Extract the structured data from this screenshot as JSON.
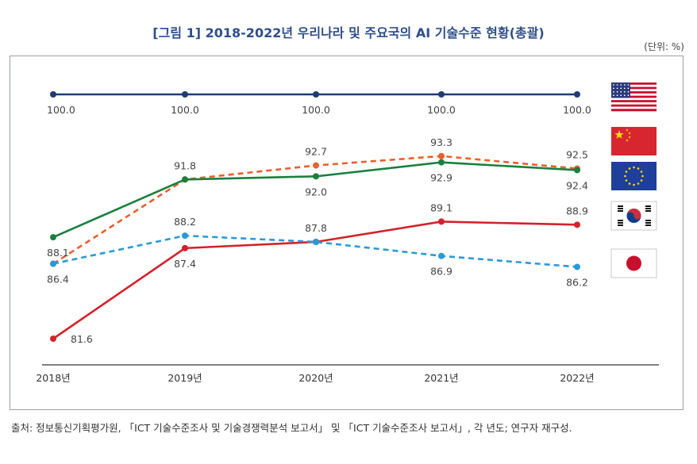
{
  "title": "[그림 1] 2018-2022년 우리나라 및 주요국의 AI 기술수준 현황(총괄)",
  "unit": "(단위: %)",
  "source": "출처: 정보통신기획평가원, 「ICT 기술수준조사 및 기술경쟁력분석 보고서」 및 「ICT 기술수준조사 보고서」, 각 년도; 연구자 재구성.",
  "chart_data": {
    "type": "line",
    "title": "[그림 1] 2018-2022년 우리나라 및 주요국의 AI 기술수준 현황(총괄)",
    "xlabel": "",
    "ylabel": "(단위: %)",
    "categories": [
      "2018년",
      "2019년",
      "2020년",
      "2021년",
      "2022년"
    ],
    "series": [
      {
        "name": "미국",
        "flag": "usa",
        "color": "#1f3c73",
        "dash": false,
        "values": [
          100.0,
          100.0,
          100.0,
          100.0,
          100.0
        ],
        "labels": [
          "100.0",
          "100.0",
          "100.0",
          "100.0",
          "100.0"
        ],
        "label_pos": [
          "below",
          "below",
          "below",
          "below",
          "below"
        ]
      },
      {
        "name": "중국",
        "flag": "china",
        "color": "#e8602c",
        "dash": true,
        "values": [
          86.4,
          91.8,
          92.7,
          93.3,
          92.5
        ],
        "labels": [
          "",
          "",
          "92.7",
          "93.3",
          "92.5"
        ],
        "label_pos": [
          "",
          "",
          "above",
          "above",
          "above"
        ]
      },
      {
        "name": "EU",
        "flag": "eu",
        "color": "#1b7f3e",
        "dash": false,
        "values": [
          88.1,
          91.8,
          92.0,
          92.9,
          92.4
        ],
        "labels": [
          "88.1",
          "91.8",
          "92.0",
          "92.9",
          "92.4"
        ],
        "label_pos": [
          "below",
          "above",
          "below",
          "below",
          "below"
        ]
      },
      {
        "name": "한국",
        "flag": "korea",
        "color": "#d3222a",
        "dash": false,
        "values": [
          81.6,
          87.4,
          87.8,
          89.1,
          88.9
        ],
        "labels": [
          "81.6",
          "87.4",
          "87.8",
          "89.1",
          "88.9"
        ],
        "label_pos": [
          "right",
          "below",
          "above",
          "above",
          "above"
        ]
      },
      {
        "name": "일본",
        "flag": "japan",
        "color": "#2a9ad6",
        "dash": true,
        "values": [
          86.4,
          88.2,
          87.8,
          86.9,
          86.2
        ],
        "labels": [
          "86.4",
          "88.2",
          "",
          "86.9",
          "86.2"
        ],
        "label_pos": [
          "below",
          "above",
          "",
          "below",
          "below"
        ]
      }
    ]
  }
}
